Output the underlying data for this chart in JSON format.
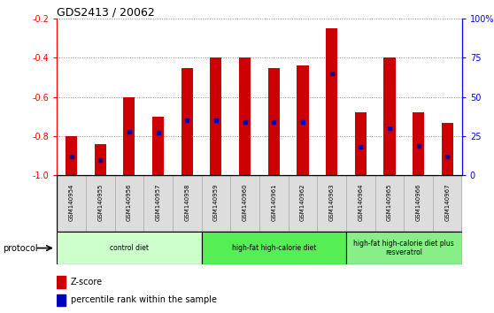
{
  "title": "GDS2413 / 20062",
  "samples": [
    "GSM140954",
    "GSM140955",
    "GSM140956",
    "GSM140957",
    "GSM140958",
    "GSM140959",
    "GSM140960",
    "GSM140961",
    "GSM140962",
    "GSM140963",
    "GSM140964",
    "GSM140965",
    "GSM140966",
    "GSM140967"
  ],
  "zscore": [
    -0.8,
    -0.84,
    -0.6,
    -0.7,
    -0.45,
    -0.4,
    -0.4,
    -0.45,
    -0.44,
    -0.25,
    -0.68,
    -0.4,
    -0.68,
    -0.73
  ],
  "percentile": [
    0.12,
    0.1,
    0.28,
    0.27,
    0.35,
    0.35,
    0.34,
    0.34,
    0.34,
    0.65,
    0.18,
    0.3,
    0.19,
    0.12
  ],
  "ylim_left": [
    -1.0,
    -0.2
  ],
  "ylim_right": [
    0,
    100
  ],
  "bar_color": "#cc0000",
  "dot_color": "#0000bb",
  "grid_color": "#888888",
  "yticks_left": [
    -1.0,
    -0.8,
    -0.6,
    -0.4,
    -0.2
  ],
  "yticks_right": [
    0,
    25,
    50,
    75,
    100
  ],
  "groups": [
    {
      "label": "control diet",
      "start": 0,
      "end": 4,
      "color": "#ccffcc"
    },
    {
      "label": "high-fat high-calorie diet",
      "start": 5,
      "end": 9,
      "color": "#55ee55"
    },
    {
      "label": "high-fat high-calorie diet plus\nresveratrol",
      "start": 10,
      "end": 13,
      "color": "#88ee88"
    }
  ],
  "protocol_label": "protocol",
  "legend_zscore": "Z-score",
  "legend_percentile": "percentile rank within the sample",
  "bar_width": 0.4
}
